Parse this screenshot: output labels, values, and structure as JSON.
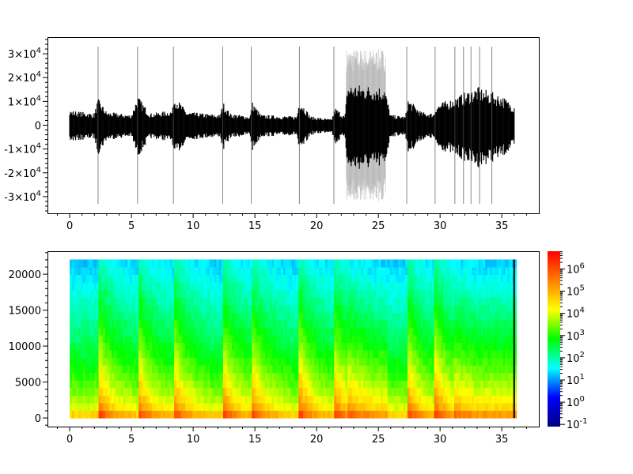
{
  "chart_data": [
    {
      "type": "line",
      "title": "",
      "xlabel": "",
      "ylabel": "",
      "xlim": [
        -1.8,
        38
      ],
      "ylim": [
        -37000,
        37000
      ],
      "xticks": [
        "0",
        "5",
        "10",
        "15",
        "20",
        "25",
        "30",
        "35"
      ],
      "yticks": [
        {
          "v": 30000,
          "b": "3",
          "s": "×10",
          "e": "4",
          "n": ""
        },
        {
          "v": 20000,
          "b": "2",
          "s": "×10",
          "e": "4",
          "n": ""
        },
        {
          "v": 10000,
          "b": "1",
          "s": "×10",
          "e": "4",
          "n": ""
        },
        {
          "v": 0,
          "b": "0",
          "s": "",
          "e": "",
          "n": ""
        },
        {
          "v": -10000,
          "b": "-1",
          "s": "×10",
          "e": "4",
          "n": ""
        },
        {
          "v": -20000,
          "b": "-2",
          "s": "×10",
          "e": "4",
          "n": ""
        },
        {
          "v": -30000,
          "b": "-3",
          "s": "×10",
          "e": "4",
          "n": ""
        }
      ],
      "duration": 36,
      "envelope": [
        [
          0,
          5000
        ],
        [
          2,
          4000
        ],
        [
          2.3,
          9000
        ],
        [
          3,
          4500
        ],
        [
          5,
          3500
        ],
        [
          5.5,
          10000
        ],
        [
          6.5,
          4000
        ],
        [
          8.3,
          5000
        ],
        [
          8.5,
          10000
        ],
        [
          9.5,
          4500
        ],
        [
          12.2,
          3500
        ],
        [
          12.4,
          8000
        ],
        [
          13,
          4000
        ],
        [
          14.6,
          3000
        ],
        [
          14.8,
          8000
        ],
        [
          15.5,
          3500
        ],
        [
          18.4,
          3000
        ],
        [
          18.6,
          9000
        ],
        [
          19.5,
          3000
        ],
        [
          21.2,
          2000
        ],
        [
          21.5,
          6000
        ],
        [
          22.3,
          3000
        ],
        [
          22.5,
          14000
        ],
        [
          25.5,
          13000
        ],
        [
          26,
          3500
        ],
        [
          27.2,
          3000
        ],
        [
          27.4,
          9000
        ],
        [
          28.5,
          4500
        ],
        [
          29.5,
          4000
        ],
        [
          29.7,
          7000
        ],
        [
          31,
          9000
        ],
        [
          33,
          13000
        ],
        [
          35,
          10000
        ],
        [
          35.9,
          7000
        ]
      ],
      "burst": {
        "start": 22.4,
        "end": 25.6,
        "amplitude": 32000
      },
      "spikes": [
        2.3,
        5.5,
        8.4,
        12.4,
        14.7,
        18.6,
        21.4,
        27.3,
        29.6,
        31.2,
        31.9,
        32.5,
        33.2,
        34.2
      ],
      "spike_amplitude": 33000,
      "color": "#000000"
    },
    {
      "type": "heatmap",
      "title": "",
      "xlabel": "",
      "ylabel": "",
      "xlim": [
        -1.8,
        38
      ],
      "ylim": [
        -1200,
        23200
      ],
      "xticks": [
        "0",
        "5",
        "10",
        "15",
        "20",
        "25",
        "30",
        "35"
      ],
      "yticks": [
        "0",
        "5000",
        "10000",
        "15000",
        "20000"
      ],
      "ytick_values": [
        0,
        5000,
        10000,
        15000,
        20000
      ],
      "fmax": 22050,
      "duration": 36,
      "onsets": [
        2.3,
        5.5,
        8.4,
        12.4,
        14.7,
        18.6,
        21.4,
        27.3,
        29.6
      ],
      "loud_regions": [
        [
          22.4,
          25.6
        ],
        [
          31,
          36
        ]
      ],
      "colorbar": {
        "scale": "log",
        "range_exp": [
          -1.1,
          6.8
        ],
        "ticks": [
          {
            "b": "10",
            "e": "6",
            "v": 6
          },
          {
            "b": "10",
            "e": "5",
            "v": 5
          },
          {
            "b": "10",
            "e": "4",
            "v": 4
          },
          {
            "b": "10",
            "e": "3",
            "v": 3
          },
          {
            "b": "10",
            "e": "2",
            "v": 2
          },
          {
            "b": "10",
            "e": "1",
            "v": 1
          },
          {
            "b": "10",
            "e": "0",
            "v": 0
          },
          {
            "b": "10",
            "e": "-1",
            "v": -1
          }
        ],
        "colormap": [
          "#00007f",
          "#0000ff",
          "#00ffff",
          "#00ff00",
          "#ffff00",
          "#ff8000",
          "#ff0000"
        ]
      }
    }
  ]
}
